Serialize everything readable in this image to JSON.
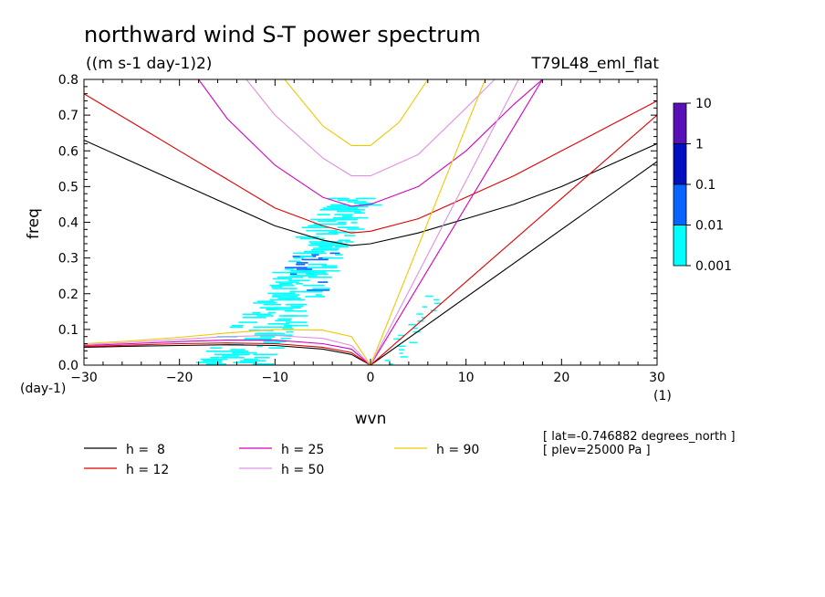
{
  "chart_data": {
    "type": "line",
    "title": "northward wind S-T power spectrum",
    "subtitle": "((m s-1 day-1)2)",
    "experiment": "T79L48_eml_flat",
    "xlabel": "wvn",
    "ylabel": "freq",
    "x_unit": "(1)",
    "y_unit": "(day-1)",
    "xlim": [
      -30,
      30
    ],
    "ylim": [
      0,
      0.8
    ],
    "xticks": [
      -30,
      -20,
      -10,
      0,
      10,
      20,
      30
    ],
    "yticks": [
      0.0,
      0.1,
      0.2,
      0.3,
      0.4,
      0.5,
      0.6,
      0.7,
      0.8
    ],
    "xtick_labels": [
      "−30",
      "−20",
      "−10",
      "0",
      "10",
      "20",
      "30"
    ],
    "ytick_labels": [
      "0.0",
      "0.1",
      "0.2",
      "0.3",
      "0.4",
      "0.5",
      "0.6",
      "0.7",
      "0.8"
    ],
    "grid": false,
    "colorbar": {
      "labels": [
        "10",
        "1",
        "0.1",
        "0.01",
        "0.001"
      ],
      "colors": [
        "#5a10b8",
        "#0010c0",
        "#0a64ff",
        "#00ffff"
      ]
    },
    "legend": [
      {
        "label": "h =  8",
        "color": "#000000"
      },
      {
        "label": "h = 12",
        "color": "#e00000"
      },
      {
        "label": "h = 25",
        "color": "#d000c0"
      },
      {
        "label": "h = 50",
        "color": "#e090e0"
      },
      {
        "label": "h = 90",
        "color": "#f0c800"
      }
    ],
    "annotations": [
      "[ lat=-0.746882 degrees_north ]",
      "[ plev=25000 Pa ]"
    ],
    "series": [
      {
        "curve": "MRG",
        "h": 8,
        "x": [
          -30,
          -25,
          -20,
          -15,
          -10,
          -5,
          -2,
          0
        ],
        "y": [
          0.05,
          0.053,
          0.055,
          0.057,
          0.055,
          0.045,
          0.03,
          0.0
        ]
      },
      {
        "curve": "MRG",
        "h": 12,
        "x": [
          -30,
          -25,
          -20,
          -15,
          -10,
          -5,
          -2,
          0
        ],
        "y": [
          0.052,
          0.056,
          0.06,
          0.062,
          0.06,
          0.05,
          0.035,
          0.0
        ]
      },
      {
        "curve": "MRG",
        "h": 25,
        "x": [
          -30,
          -25,
          -20,
          -15,
          -10,
          -5,
          -2,
          0
        ],
        "y": [
          0.055,
          0.06,
          0.066,
          0.07,
          0.07,
          0.06,
          0.045,
          0.0
        ]
      },
      {
        "curve": "MRG",
        "h": 50,
        "x": [
          -30,
          -25,
          -20,
          -15,
          -10,
          -5,
          -2,
          0
        ],
        "y": [
          0.057,
          0.064,
          0.072,
          0.08,
          0.083,
          0.075,
          0.055,
          0.0
        ]
      },
      {
        "curve": "MRG",
        "h": 90,
        "x": [
          -30,
          -25,
          -20,
          -15,
          -10,
          -5,
          -2,
          0
        ],
        "y": [
          0.06,
          0.068,
          0.078,
          0.09,
          0.1,
          0.098,
          0.08,
          0.0
        ]
      },
      {
        "curve": "IG",
        "h": 8,
        "x": [
          -30,
          -25,
          -20,
          -15,
          -10,
          -5,
          -2,
          0,
          5,
          10,
          15,
          20,
          25,
          30
        ],
        "y": [
          0.63,
          0.57,
          0.51,
          0.45,
          0.39,
          0.35,
          0.335,
          0.34,
          0.37,
          0.41,
          0.45,
          0.5,
          0.56,
          0.62
        ]
      },
      {
        "curve": "IG",
        "h": 12,
        "x": [
          -30,
          -25,
          -20,
          -15,
          -10,
          -5,
          -2,
          0,
          5,
          10,
          15,
          20,
          25,
          30
        ],
        "y": [
          0.76,
          0.68,
          0.6,
          0.52,
          0.44,
          0.39,
          0.37,
          0.375,
          0.41,
          0.47,
          0.53,
          0.6,
          0.67,
          0.74
        ]
      },
      {
        "curve": "IG",
        "h": 25,
        "x": [
          -18,
          -15,
          -10,
          -5,
          -2,
          0,
          5,
          10,
          15,
          18
        ],
        "y": [
          0.8,
          0.69,
          0.56,
          0.47,
          0.445,
          0.45,
          0.5,
          0.6,
          0.73,
          0.8
        ]
      },
      {
        "curve": "IG",
        "h": 50,
        "x": [
          -13,
          -10,
          -5,
          -2,
          0,
          5,
          10,
          13
        ],
        "y": [
          0.8,
          0.7,
          0.58,
          0.53,
          0.53,
          0.59,
          0.72,
          0.8
        ]
      },
      {
        "curve": "IG",
        "h": 90,
        "x": [
          -9,
          -5,
          -2,
          0,
          3,
          6
        ],
        "y": [
          0.8,
          0.67,
          0.615,
          0.615,
          0.68,
          0.8
        ]
      },
      {
        "curve": "Kelvin",
        "h": 8,
        "x": [
          0,
          30
        ],
        "y": [
          0.0,
          0.57
        ]
      },
      {
        "curve": "Kelvin",
        "h": 12,
        "x": [
          0,
          30
        ],
        "y": [
          0.0,
          0.7
        ]
      },
      {
        "curve": "Kelvin",
        "h": 25,
        "x": [
          0,
          18
        ],
        "y": [
          0.0,
          0.8
        ]
      },
      {
        "curve": "Kelvin",
        "h": 50,
        "x": [
          0,
          15.5
        ],
        "y": [
          0.0,
          0.8
        ]
      },
      {
        "curve": "Kelvin",
        "h": 90,
        "x": [
          0,
          12
        ],
        "y": [
          0.0,
          0.8
        ]
      }
    ]
  }
}
